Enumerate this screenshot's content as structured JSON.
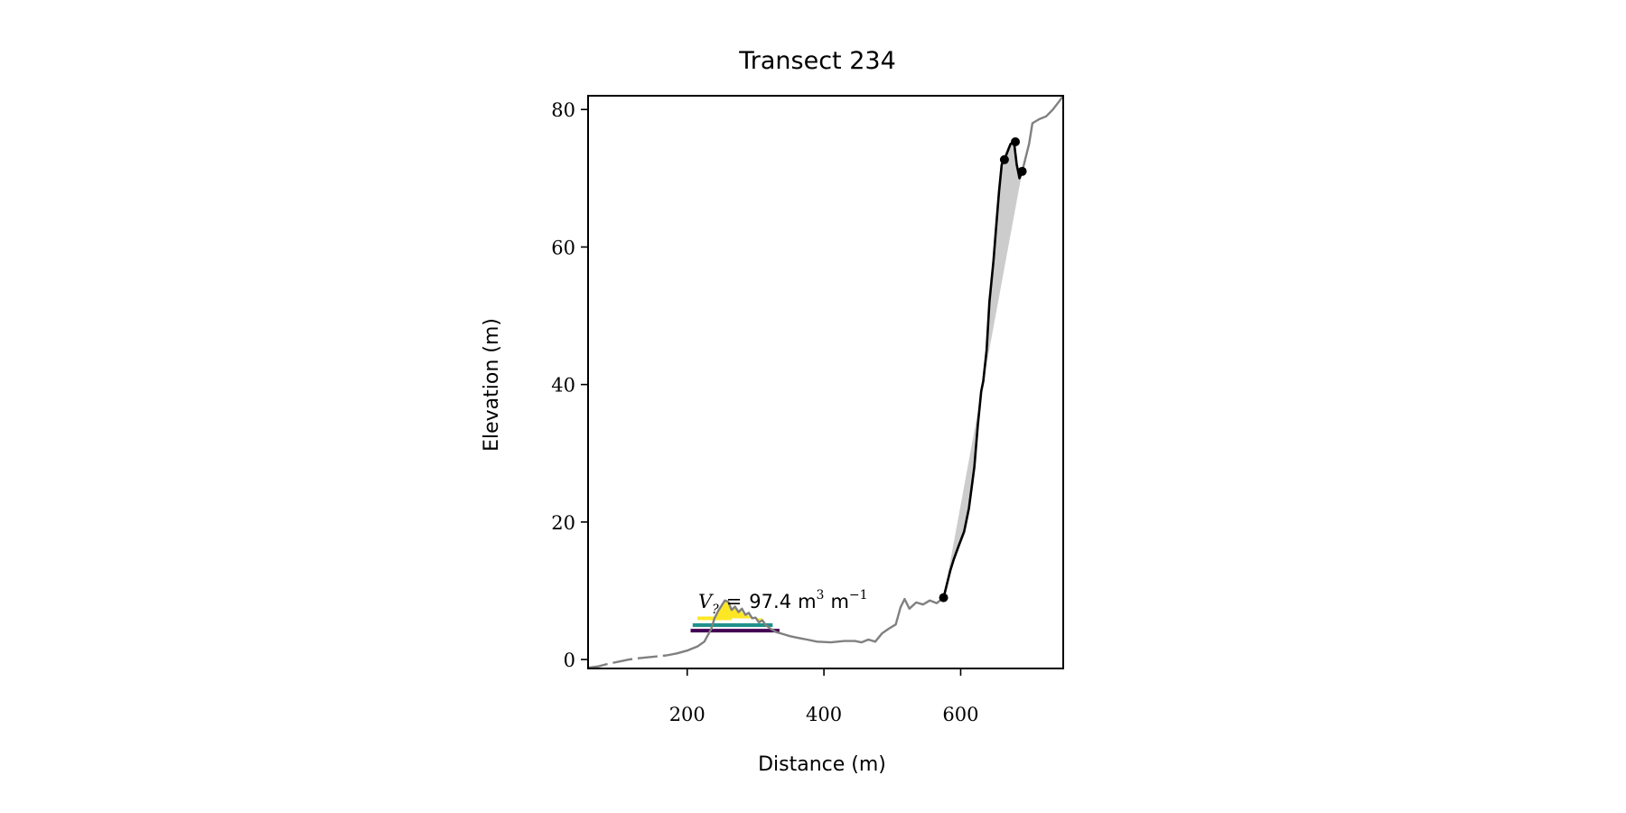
{
  "chart_data": {
    "type": "line",
    "title": "Transect 234",
    "xlabel": "Distance (m)",
    "ylabel": "Elevation (m)",
    "xlim": [
      55,
      750
    ],
    "ylim": [
      -1.3,
      82
    ],
    "xticks": [
      200,
      400,
      600
    ],
    "yticks": [
      0,
      20,
      40,
      60,
      80
    ],
    "grid": false,
    "annotation": {
      "symbol": "V",
      "subscript": "?",
      "equals": "=",
      "value": "97.4",
      "unit": "m",
      "unit_exp": "3",
      "unit2": "m",
      "unit2_exp": "−1"
    },
    "series": [
      {
        "role": "profile-dashed",
        "color": "#808080",
        "x": [
          55,
          70,
          85,
          100,
          115,
          130,
          150,
          170
        ],
        "y": [
          -1.2,
          -1.0,
          -0.6,
          -0.3,
          0.0,
          0.2,
          0.4,
          0.6
        ]
      },
      {
        "role": "profile",
        "color": "#808080",
        "x": [
          170,
          185,
          200,
          215,
          225,
          235,
          240,
          245,
          250,
          255,
          260,
          265,
          270,
          275,
          280,
          285,
          290,
          295,
          300,
          305,
          310,
          315,
          320,
          325,
          330,
          340,
          350,
          360,
          375,
          390,
          410,
          430,
          445,
          455,
          465,
          475,
          485,
          495,
          505,
          512,
          518,
          525,
          535,
          545,
          555,
          565,
          575
        ],
        "y": [
          0.6,
          0.9,
          1.3,
          1.9,
          2.6,
          4.4,
          6.0,
          7.0,
          7.8,
          8.6,
          8.4,
          7.2,
          7.7,
          6.9,
          7.4,
          6.5,
          6.8,
          6.0,
          6.1,
          5.4,
          5.7,
          5.0,
          4.6,
          4.3,
          4.0,
          3.7,
          3.4,
          3.2,
          2.9,
          2.6,
          2.5,
          2.7,
          2.7,
          2.5,
          2.9,
          2.6,
          3.8,
          4.5,
          5.1,
          7.6,
          8.8,
          7.4,
          8.3,
          8.0,
          8.6,
          8.2,
          9.0
        ]
      },
      {
        "role": "profile-upper",
        "color": "#808080",
        "x": [
          690,
          700,
          705,
          715,
          725,
          735,
          745,
          750
        ],
        "y": [
          71.0,
          75.0,
          78.0,
          78.6,
          79.0,
          80.0,
          81.3,
          82.0
        ]
      },
      {
        "role": "dune-slope",
        "color": "#000000",
        "x": [
          575,
          580,
          585,
          590,
          597,
          605,
          612,
          620,
          625,
          630,
          633,
          638,
          642,
          648,
          652,
          656,
          660,
          664,
          669,
          673,
          678,
          682,
          686,
          690
        ],
        "y": [
          9.0,
          11.0,
          13.0,
          14.6,
          16.5,
          18.6,
          22.0,
          28.0,
          34.0,
          39.0,
          40.5,
          45.0,
          52.0,
          58.0,
          63.0,
          68.0,
          72.0,
          72.7,
          74.0,
          75.0,
          75.3,
          72.0,
          70.0,
          71.0
        ]
      }
    ],
    "markers": {
      "color": "#000000",
      "points": [
        [
          575,
          9.0
        ],
        [
          664,
          72.7
        ],
        [
          680,
          75.3
        ],
        [
          690,
          71.0
        ]
      ]
    },
    "shaded_region": {
      "color": "#cccccc",
      "x": [
        575,
        690
      ],
      "y": [
        9.0,
        71.0
      ]
    },
    "layers": [
      {
        "color": "#fde725",
        "y": 6.0,
        "x_start": 215,
        "x_end": 265
      },
      {
        "color": "#21918c",
        "y": 5.0,
        "x_start": 208,
        "x_end": 325
      },
      {
        "color": "#440154",
        "y": 4.2,
        "x_start": 205,
        "x_end": 335
      }
    ],
    "yellow_fill": {
      "color": "#fde725",
      "x": [
        238,
        242,
        246,
        250,
        254,
        258,
        262,
        266,
        270,
        274,
        278,
        282,
        286,
        290,
        294,
        298,
        302,
        306,
        310
      ],
      "y": [
        6.0,
        6.4,
        7.0,
        7.8,
        8.5,
        8.7,
        8.4,
        7.4,
        7.6,
        7.0,
        7.3,
        6.6,
        6.8,
        6.3,
        6.3,
        6.0,
        6.1,
        5.6,
        5.5
      ]
    }
  }
}
